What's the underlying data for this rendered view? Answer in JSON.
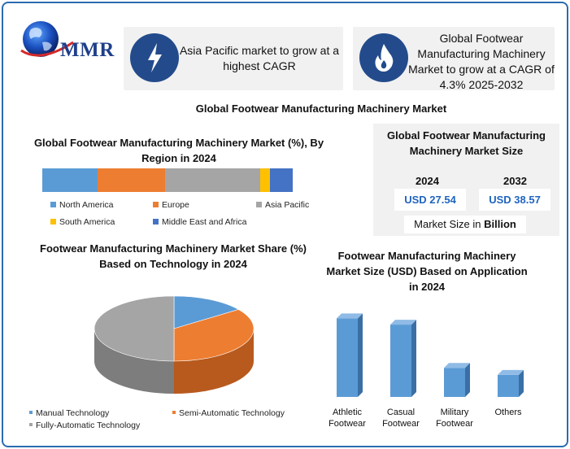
{
  "brand": {
    "logo_text": "MMR"
  },
  "banners": [
    {
      "icon": "lightning-icon",
      "text": "Asia Pacific market to grow at a highest CAGR"
    },
    {
      "icon": "flame-icon",
      "text": "Global Footwear Manufacturing Machinery Market to grow at a CAGR of 4.3% 2025-2032"
    }
  ],
  "main_title": "Global Footwear Manufacturing Machinery Market",
  "market_size": {
    "title": "Global Footwear Manufacturing Machinery Market Size",
    "years": [
      "2024",
      "2032"
    ],
    "values": [
      "USD 27.54",
      "USD 38.57"
    ],
    "unit_prefix": "Market Size in",
    "unit_bold": "Billion"
  },
  "colors": {
    "north_america": "#5b9bd5",
    "europe": "#ed7d31",
    "asia_pacific": "#a5a5a5",
    "south_america": "#ffc000",
    "mea": "#4472c4",
    "accent": "#234b8c",
    "value_blue": "#1f64c0"
  },
  "chart_data": [
    {
      "type": "bar",
      "stacked": true,
      "orientation": "horizontal",
      "title": "Global Footwear Manufacturing Machinery Market (%), By Region in 2024",
      "series": [
        {
          "name": "North America",
          "value": 22
        },
        {
          "name": "Europe",
          "value": 27
        },
        {
          "name": "Asia Pacific",
          "value": 38
        },
        {
          "name": "South America",
          "value": 4
        },
        {
          "name": "Middle East and Africa",
          "value": 9
        }
      ],
      "legend": "bottom"
    },
    {
      "type": "pie",
      "title": "Footwear Manufacturing Machinery Market Share (%) Based on Technology in 2024",
      "slices": [
        {
          "name": "Manual Technology",
          "value": 15
        },
        {
          "name": "Semi-Automatic Technology",
          "value": 35
        },
        {
          "name": "Fully-Automatic Technology",
          "value": 50
        }
      ],
      "legend": "bottom"
    },
    {
      "type": "bar",
      "title": "Footwear Manufacturing Machinery Market Size (USD) Based on Application in 2024",
      "categories": [
        "Athletic Footwear",
        "Casual Footwear",
        "Military Footwear",
        "Others"
      ],
      "values": [
        10,
        9.2,
        3.7,
        2.8
      ],
      "ylim": [
        0,
        12
      ],
      "grid": false
    }
  ]
}
